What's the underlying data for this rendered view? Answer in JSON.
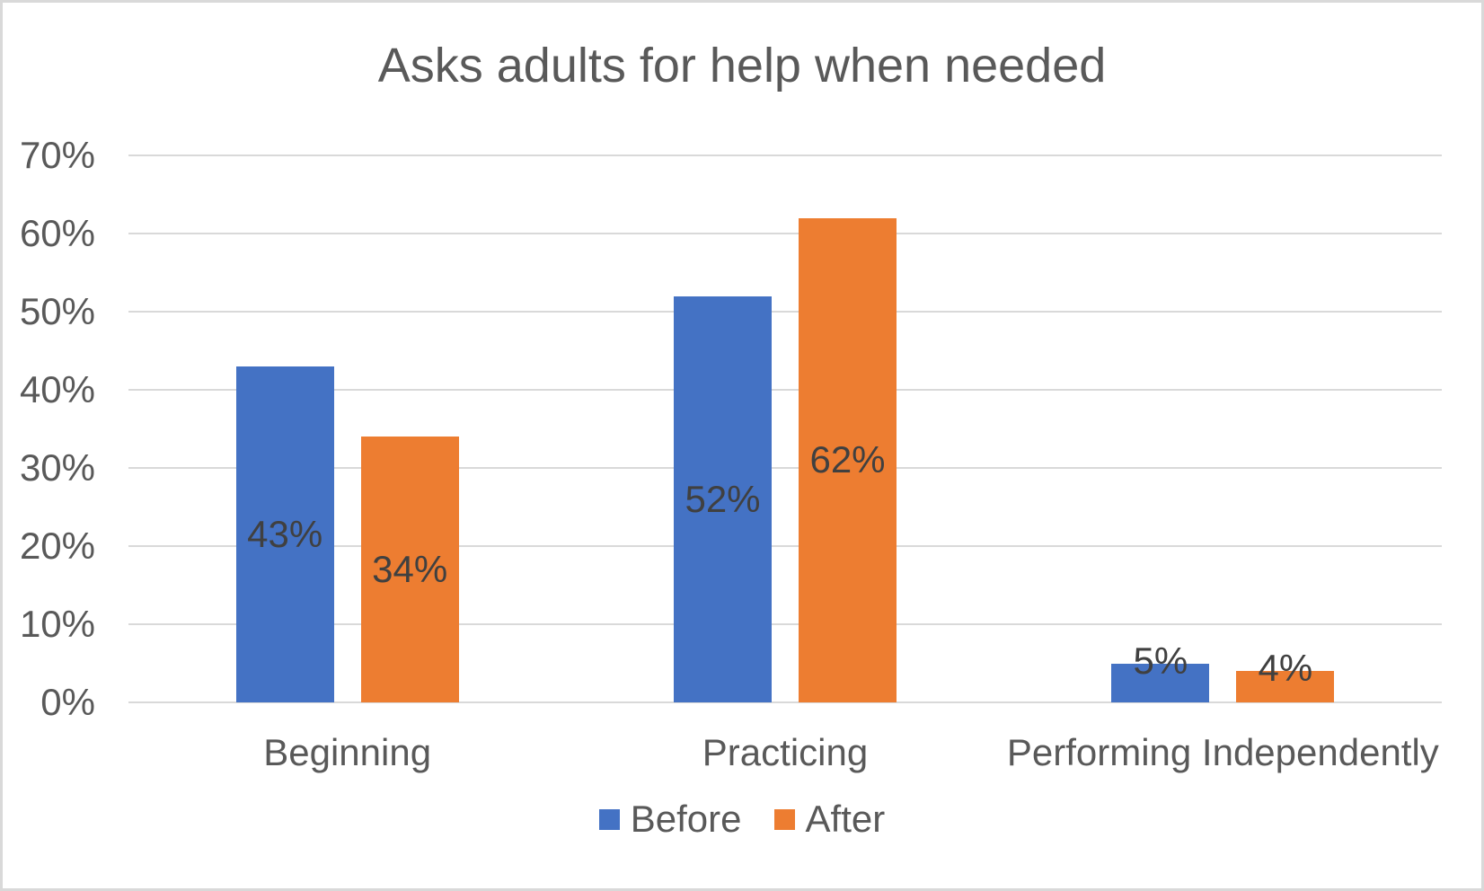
{
  "chart_data": {
    "type": "bar",
    "title": "Asks adults for help when needed",
    "categories": [
      "Beginning",
      "Practicing",
      "Performing Independently"
    ],
    "series": [
      {
        "name": "Before",
        "color": "#4472C4",
        "values": [
          43,
          52,
          5
        ],
        "labels": [
          "43%",
          "52%",
          "5%"
        ]
      },
      {
        "name": "After",
        "color": "#ED7D31",
        "values": [
          34,
          62,
          4
        ],
        "labels": [
          "34%",
          "62%",
          "4%"
        ]
      }
    ],
    "yticks": [
      "0%",
      "10%",
      "20%",
      "30%",
      "40%",
      "50%",
      "60%",
      "70%"
    ],
    "ylim": [
      0,
      70
    ],
    "ytick_step": 10,
    "xlabel": "",
    "ylabel": "",
    "grid": true,
    "legend_position": "bottom"
  },
  "colors": {
    "title_text": "#595959",
    "axis_text": "#595959",
    "data_label_text": "#404040",
    "gridline": "#D9D9D9",
    "border": "#D9D9D9",
    "background": "#FFFFFF",
    "series_before": "#4472C4",
    "series_after": "#ED7D31"
  }
}
